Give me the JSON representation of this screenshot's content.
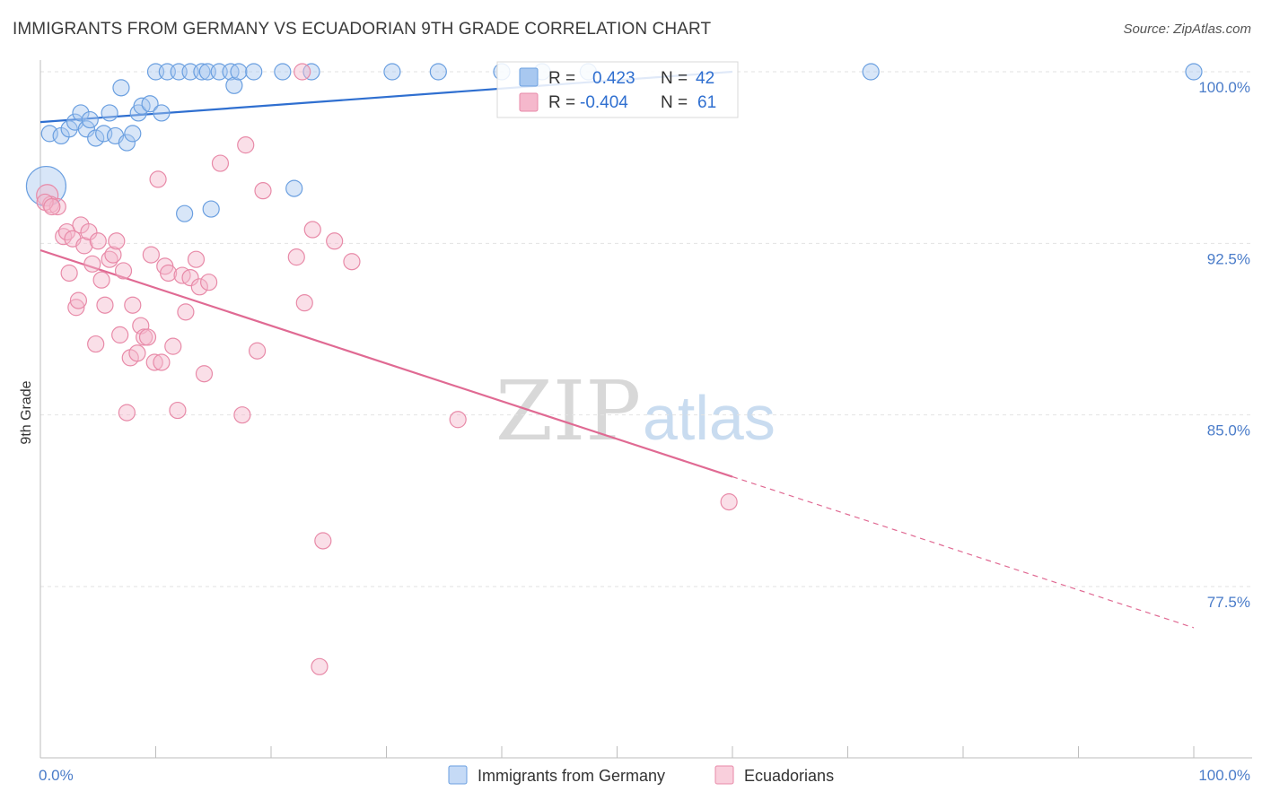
{
  "header": {
    "title": "IMMIGRANTS FROM GERMANY VS ECUADORIAN 9TH GRADE CORRELATION CHART",
    "source": "Source: ZipAtlas.com"
  },
  "watermark": {
    "part1": "ZIP",
    "part2": "atlas"
  },
  "legend_box": {
    "rows": [
      {
        "r_label": "R =",
        "r_value": "0.423",
        "n_label": "N =",
        "n_value": "42",
        "color": "#a8c8f0",
        "stroke": "#6a9fe0"
      },
      {
        "r_label": "R =",
        "r_value": "-0.404",
        "n_label": "N =",
        "n_value": "61",
        "color": "#f5b8cc",
        "stroke": "#e88aa8"
      }
    ]
  },
  "bottom_legend": [
    {
      "label": "Immigrants from Germany",
      "color": "#c5daf6",
      "stroke": "#6a9fe0"
    },
    {
      "label": "Ecuadorians",
      "color": "#f9cfdc",
      "stroke": "#e88aa8"
    }
  ],
  "chart_data": {
    "type": "scatter",
    "xlabel": "",
    "ylabel": "9th Grade",
    "xlim": [
      0,
      100
    ],
    "ylim": [
      70,
      101
    ],
    "x_tick_labels": [
      {
        "value": 0,
        "label": "0.0%"
      },
      {
        "value": 100,
        "label": "100.0%"
      }
    ],
    "y_ticks": [
      {
        "value": 100.0,
        "label": "100.0%"
      },
      {
        "value": 92.5,
        "label": "92.5%"
      },
      {
        "value": 85.0,
        "label": "85.0%"
      },
      {
        "value": 77.5,
        "label": "77.5%"
      }
    ],
    "grid": true,
    "series": [
      {
        "name": "Immigrants from Germany",
        "color": "#6a9fe0",
        "fill": "rgba(168,200,240,0.45)",
        "trend": {
          "x0": 0,
          "y0": 97.8,
          "x1": 60,
          "y1": 100.0,
          "dashed_to": null
        },
        "points": [
          [
            0.5,
            95.0,
            22
          ],
          [
            0.8,
            97.3,
            9
          ],
          [
            1.8,
            97.2,
            9
          ],
          [
            2.5,
            97.5,
            9
          ],
          [
            3.0,
            97.8,
            9
          ],
          [
            3.5,
            98.2,
            9
          ],
          [
            4.0,
            97.5,
            9
          ],
          [
            4.3,
            97.9,
            9
          ],
          [
            4.8,
            97.1,
            9
          ],
          [
            5.5,
            97.3,
            9
          ],
          [
            6.0,
            98.2,
            9
          ],
          [
            6.5,
            97.2,
            9
          ],
          [
            7.0,
            99.3,
            9
          ],
          [
            7.5,
            96.9,
            9
          ],
          [
            8.0,
            97.3,
            9
          ],
          [
            8.5,
            98.2,
            9
          ],
          [
            8.8,
            98.5,
            9
          ],
          [
            9.5,
            98.6,
            9
          ],
          [
            10.5,
            98.2,
            9
          ],
          [
            10.0,
            100.0,
            9
          ],
          [
            11.0,
            100.0,
            9
          ],
          [
            12.0,
            100.0,
            9
          ],
          [
            12.5,
            93.8,
            9
          ],
          [
            13.0,
            100.0,
            9
          ],
          [
            14.0,
            100.0,
            9
          ],
          [
            14.5,
            100.0,
            9
          ],
          [
            14.8,
            94.0,
            9
          ],
          [
            15.5,
            100.0,
            9
          ],
          [
            16.5,
            100.0,
            9
          ],
          [
            16.8,
            99.4,
            9
          ],
          [
            17.2,
            100.0,
            9
          ],
          [
            18.5,
            100.0,
            9
          ],
          [
            21.0,
            100.0,
            9
          ],
          [
            22.0,
            94.9,
            9
          ],
          [
            23.5,
            100.0,
            9
          ],
          [
            30.5,
            100.0,
            9
          ],
          [
            34.5,
            100.0,
            9
          ],
          [
            40.0,
            100.0,
            9
          ],
          [
            47.5,
            100.0,
            9
          ],
          [
            72.0,
            100.0,
            9
          ],
          [
            100.0,
            100.0,
            9
          ],
          [
            43.5,
            100.0,
            9
          ]
        ]
      },
      {
        "name": "Ecuadorians",
        "color": "#e88aa8",
        "fill": "rgba(245,184,204,0.45)",
        "trend": {
          "x0": 0,
          "y0": 92.2,
          "x1": 60,
          "y1": 82.3,
          "dashed_to": {
            "x": 100,
            "y": 75.7
          }
        },
        "points": [
          [
            0.6,
            94.6,
            12
          ],
          [
            0.9,
            94.2,
            9
          ],
          [
            1.5,
            94.1,
            9
          ],
          [
            2.0,
            92.8,
            9
          ],
          [
            2.3,
            93.0,
            9
          ],
          [
            2.5,
            91.2,
            9
          ],
          [
            2.8,
            92.7,
            9
          ],
          [
            3.1,
            89.7,
            9
          ],
          [
            3.3,
            90.0,
            9
          ],
          [
            3.5,
            93.3,
            9
          ],
          [
            3.8,
            92.4,
            9
          ],
          [
            4.2,
            93.0,
            9
          ],
          [
            4.5,
            91.6,
            9
          ],
          [
            4.8,
            88.1,
            9
          ],
          [
            5.0,
            92.6,
            9
          ],
          [
            5.3,
            90.9,
            9
          ],
          [
            5.6,
            89.8,
            9
          ],
          [
            6.0,
            91.8,
            9
          ],
          [
            6.3,
            92.0,
            9
          ],
          [
            6.6,
            92.6,
            9
          ],
          [
            6.9,
            88.5,
            9
          ],
          [
            7.2,
            91.3,
            9
          ],
          [
            7.5,
            85.1,
            9
          ],
          [
            7.8,
            87.5,
            9
          ],
          [
            8.0,
            89.8,
            9
          ],
          [
            8.4,
            87.7,
            9
          ],
          [
            8.7,
            88.9,
            9
          ],
          [
            9.0,
            88.4,
            9
          ],
          [
            9.3,
            88.4,
            9
          ],
          [
            9.6,
            92.0,
            9
          ],
          [
            9.9,
            87.3,
            9
          ],
          [
            10.2,
            95.3,
            9
          ],
          [
            10.5,
            87.3,
            9
          ],
          [
            10.8,
            91.5,
            9
          ],
          [
            11.1,
            91.2,
            9
          ],
          [
            11.5,
            88.0,
            9
          ],
          [
            11.9,
            85.2,
            9
          ],
          [
            12.3,
            91.1,
            9
          ],
          [
            12.6,
            89.5,
            9
          ],
          [
            13.0,
            91.0,
            9
          ],
          [
            13.5,
            91.8,
            9
          ],
          [
            13.8,
            90.6,
            9
          ],
          [
            14.2,
            86.8,
            9
          ],
          [
            14.6,
            90.8,
            9
          ],
          [
            15.6,
            96.0,
            9
          ],
          [
            17.5,
            85.0,
            9
          ],
          [
            17.8,
            96.8,
            9
          ],
          [
            18.8,
            87.8,
            9
          ],
          [
            19.3,
            94.8,
            9
          ],
          [
            22.2,
            91.9,
            9
          ],
          [
            22.7,
            100.0,
            9
          ],
          [
            22.9,
            89.9,
            9
          ],
          [
            23.6,
            93.1,
            9
          ],
          [
            24.2,
            74.0,
            9
          ],
          [
            24.5,
            79.5,
            9
          ],
          [
            25.5,
            92.6,
            9
          ],
          [
            27.0,
            91.7,
            9
          ],
          [
            36.2,
            84.8,
            9
          ],
          [
            59.7,
            81.2,
            9
          ],
          [
            0.4,
            94.3,
            9
          ],
          [
            1.0,
            94.1,
            9
          ]
        ]
      }
    ]
  }
}
